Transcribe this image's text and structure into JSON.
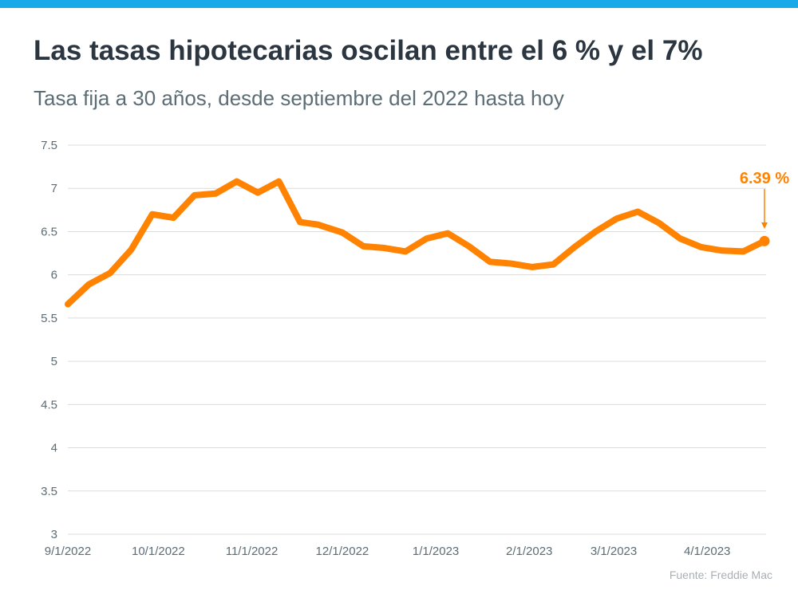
{
  "header": {
    "title": "Las tasas hipotecarias oscilan entre el 6 % y el 7%",
    "subtitle": "Tasa fija a 30 años, desde septiembre del 2022 hasta hoy"
  },
  "source": "Fuente: Freddie Mac",
  "colors": {
    "accent": "#ff8200",
    "topbar": "#1aa9e8",
    "grid": "#dcdcdc",
    "text": "#2b3640"
  },
  "chart_data": {
    "type": "line",
    "title": "Las tasas hipotecarias oscilan entre el 6 % y el 7%",
    "subtitle": "Tasa fija a 30 años, desde septiembre del 2022 hasta hoy",
    "xlabel": "",
    "ylabel": "",
    "ylim": [
      3,
      7.5
    ],
    "yticks": [
      "3",
      "3.5",
      "4",
      "4.5",
      "5",
      "5.5",
      "6",
      "6.5",
      "7",
      "7.5"
    ],
    "xticks": [
      {
        "label": "9/1/2022",
        "day": 0
      },
      {
        "label": "10/1/2022",
        "day": 30
      },
      {
        "label": "11/1/2022",
        "day": 61
      },
      {
        "label": "12/1/2022",
        "day": 91
      },
      {
        "label": "1/1/2023",
        "day": 122
      },
      {
        "label": "2/1/2023",
        "day": 153
      },
      {
        "label": "3/1/2023",
        "day": 181
      },
      {
        "label": "4/1/2023",
        "day": 212
      }
    ],
    "xlim_days": [
      0,
      231
    ],
    "grid": true,
    "series": [
      {
        "name": "Tasa fija a 30 años",
        "days": [
          0,
          7,
          14,
          21,
          28,
          35,
          42,
          49,
          56,
          63,
          70,
          77,
          83,
          91,
          98,
          105,
          112,
          119,
          126,
          133,
          140,
          147,
          154,
          161,
          168,
          175,
          182,
          189,
          196,
          203,
          210,
          217,
          224,
          231
        ],
        "values": [
          5.66,
          5.89,
          6.02,
          6.29,
          6.7,
          6.66,
          6.92,
          6.94,
          7.08,
          6.95,
          7.08,
          6.61,
          6.58,
          6.49,
          6.33,
          6.31,
          6.27,
          6.42,
          6.48,
          6.33,
          6.15,
          6.13,
          6.09,
          6.12,
          6.32,
          6.5,
          6.65,
          6.73,
          6.6,
          6.42,
          6.32,
          6.28,
          6.27,
          6.39
        ]
      }
    ],
    "annotation": {
      "label": "6.39 %",
      "value": 6.39
    }
  }
}
